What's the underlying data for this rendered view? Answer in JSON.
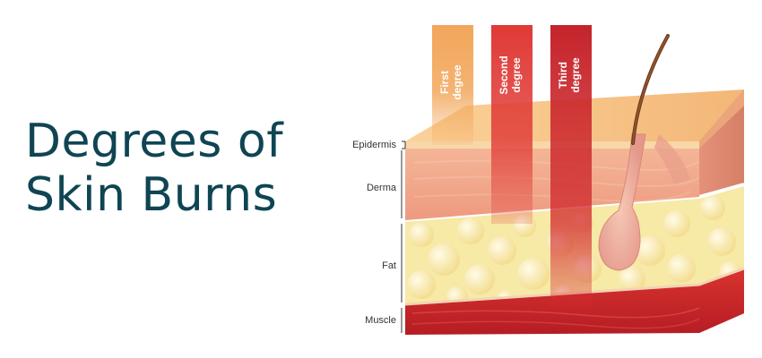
{
  "title": {
    "line1": "Degrees of",
    "line2": "Skin Burns"
  },
  "degrees": [
    {
      "line1": "First",
      "line2": "degree",
      "color": "#f2a65a"
    },
    {
      "line1": "Second",
      "line2": "degree",
      "color": "#e03a36"
    },
    {
      "line1": "Third",
      "line2": "degree",
      "color": "#c4242b"
    }
  ],
  "layers": {
    "epidermis": "Epidermis",
    "derma": "Derma",
    "fat": "Fat",
    "muscle": "Muscle"
  },
  "colors": {
    "title": "#0f4553",
    "epidermis": "#f6c98c",
    "derma": "#f0a68a",
    "fat": "#f7e9a6",
    "muscle": "#c9262b"
  }
}
